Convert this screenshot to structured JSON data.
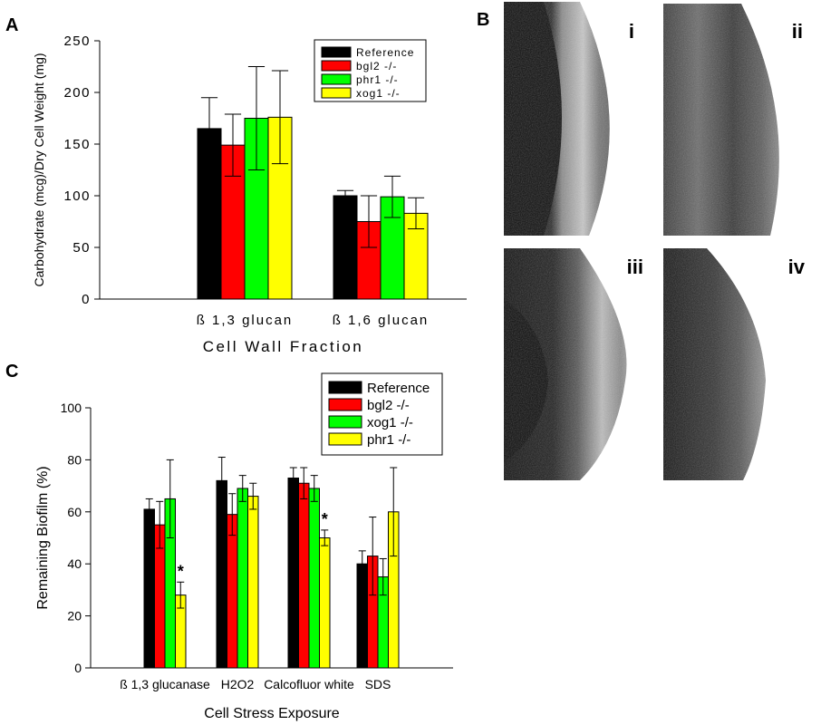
{
  "panels": {
    "A": "A",
    "B": "B",
    "C": "C"
  },
  "chart_data": [
    {
      "type": "bar",
      "panel": "A",
      "title": "",
      "xlabel": "Cell Wall Fraction",
      "ylabel": "Carbohydrate (mcg)/Dry Cell Weight (mg)",
      "ylim": [
        0,
        250
      ],
      "yticks": [
        "0",
        "50",
        "100",
        "150",
        "200",
        "250"
      ],
      "categories": [
        "ß 1,3 glucan",
        "ß 1,6 glucan"
      ],
      "legend_position": "top-right",
      "series": [
        {
          "name": "Reference",
          "color": "#000000",
          "values": [
            165,
            100
          ],
          "errors": [
            30,
            5
          ]
        },
        {
          "name": "bgl2 -/-",
          "color": "#ff0000",
          "values": [
            149,
            75
          ],
          "errors": [
            30,
            25
          ]
        },
        {
          "name": "phr1 -/-",
          "color": "#00ff00",
          "values": [
            175,
            99
          ],
          "errors": [
            50,
            20
          ]
        },
        {
          "name": "xog1 -/-",
          "color": "#ffff00",
          "values": [
            176,
            83
          ],
          "errors": [
            45,
            15
          ]
        }
      ],
      "annotations": []
    },
    {
      "type": "bar",
      "panel": "C",
      "title": "",
      "xlabel": "Cell Stress Exposure",
      "ylabel": "Remaining Biofilm (%)",
      "ylim": [
        0,
        100
      ],
      "yticks": [
        "0",
        "20",
        "40",
        "60",
        "80",
        "100"
      ],
      "categories": [
        "ß 1,3 glucanase",
        "H2O2",
        "Calcofluor white",
        "SDS"
      ],
      "legend_position": "top-right",
      "series": [
        {
          "name": "Reference",
          "color": "#000000",
          "values": [
            61,
            72,
            73,
            40
          ],
          "errors": [
            4,
            9,
            4,
            5
          ]
        },
        {
          "name": "bgl2 -/-",
          "color": "#ff0000",
          "values": [
            55,
            59,
            71,
            43
          ],
          "errors": [
            9,
            8,
            6,
            15
          ]
        },
        {
          "name": "xog1 -/-",
          "color": "#00ff00",
          "values": [
            65,
            69,
            69,
            35
          ],
          "errors": [
            15,
            5,
            5,
            7
          ]
        },
        {
          "name": "phr1 -/-",
          "color": "#ffff00",
          "values": [
            28,
            66,
            50,
            60
          ],
          "errors": [
            5,
            5,
            3,
            17
          ]
        }
      ],
      "annotations": [
        {
          "text": "*",
          "category_index": 0,
          "series_index": 3
        },
        {
          "text": "*",
          "category_index": 2,
          "series_index": 3
        }
      ]
    }
  ],
  "micrographs": {
    "labels": [
      "i",
      "ii",
      "iii",
      "iv"
    ]
  }
}
